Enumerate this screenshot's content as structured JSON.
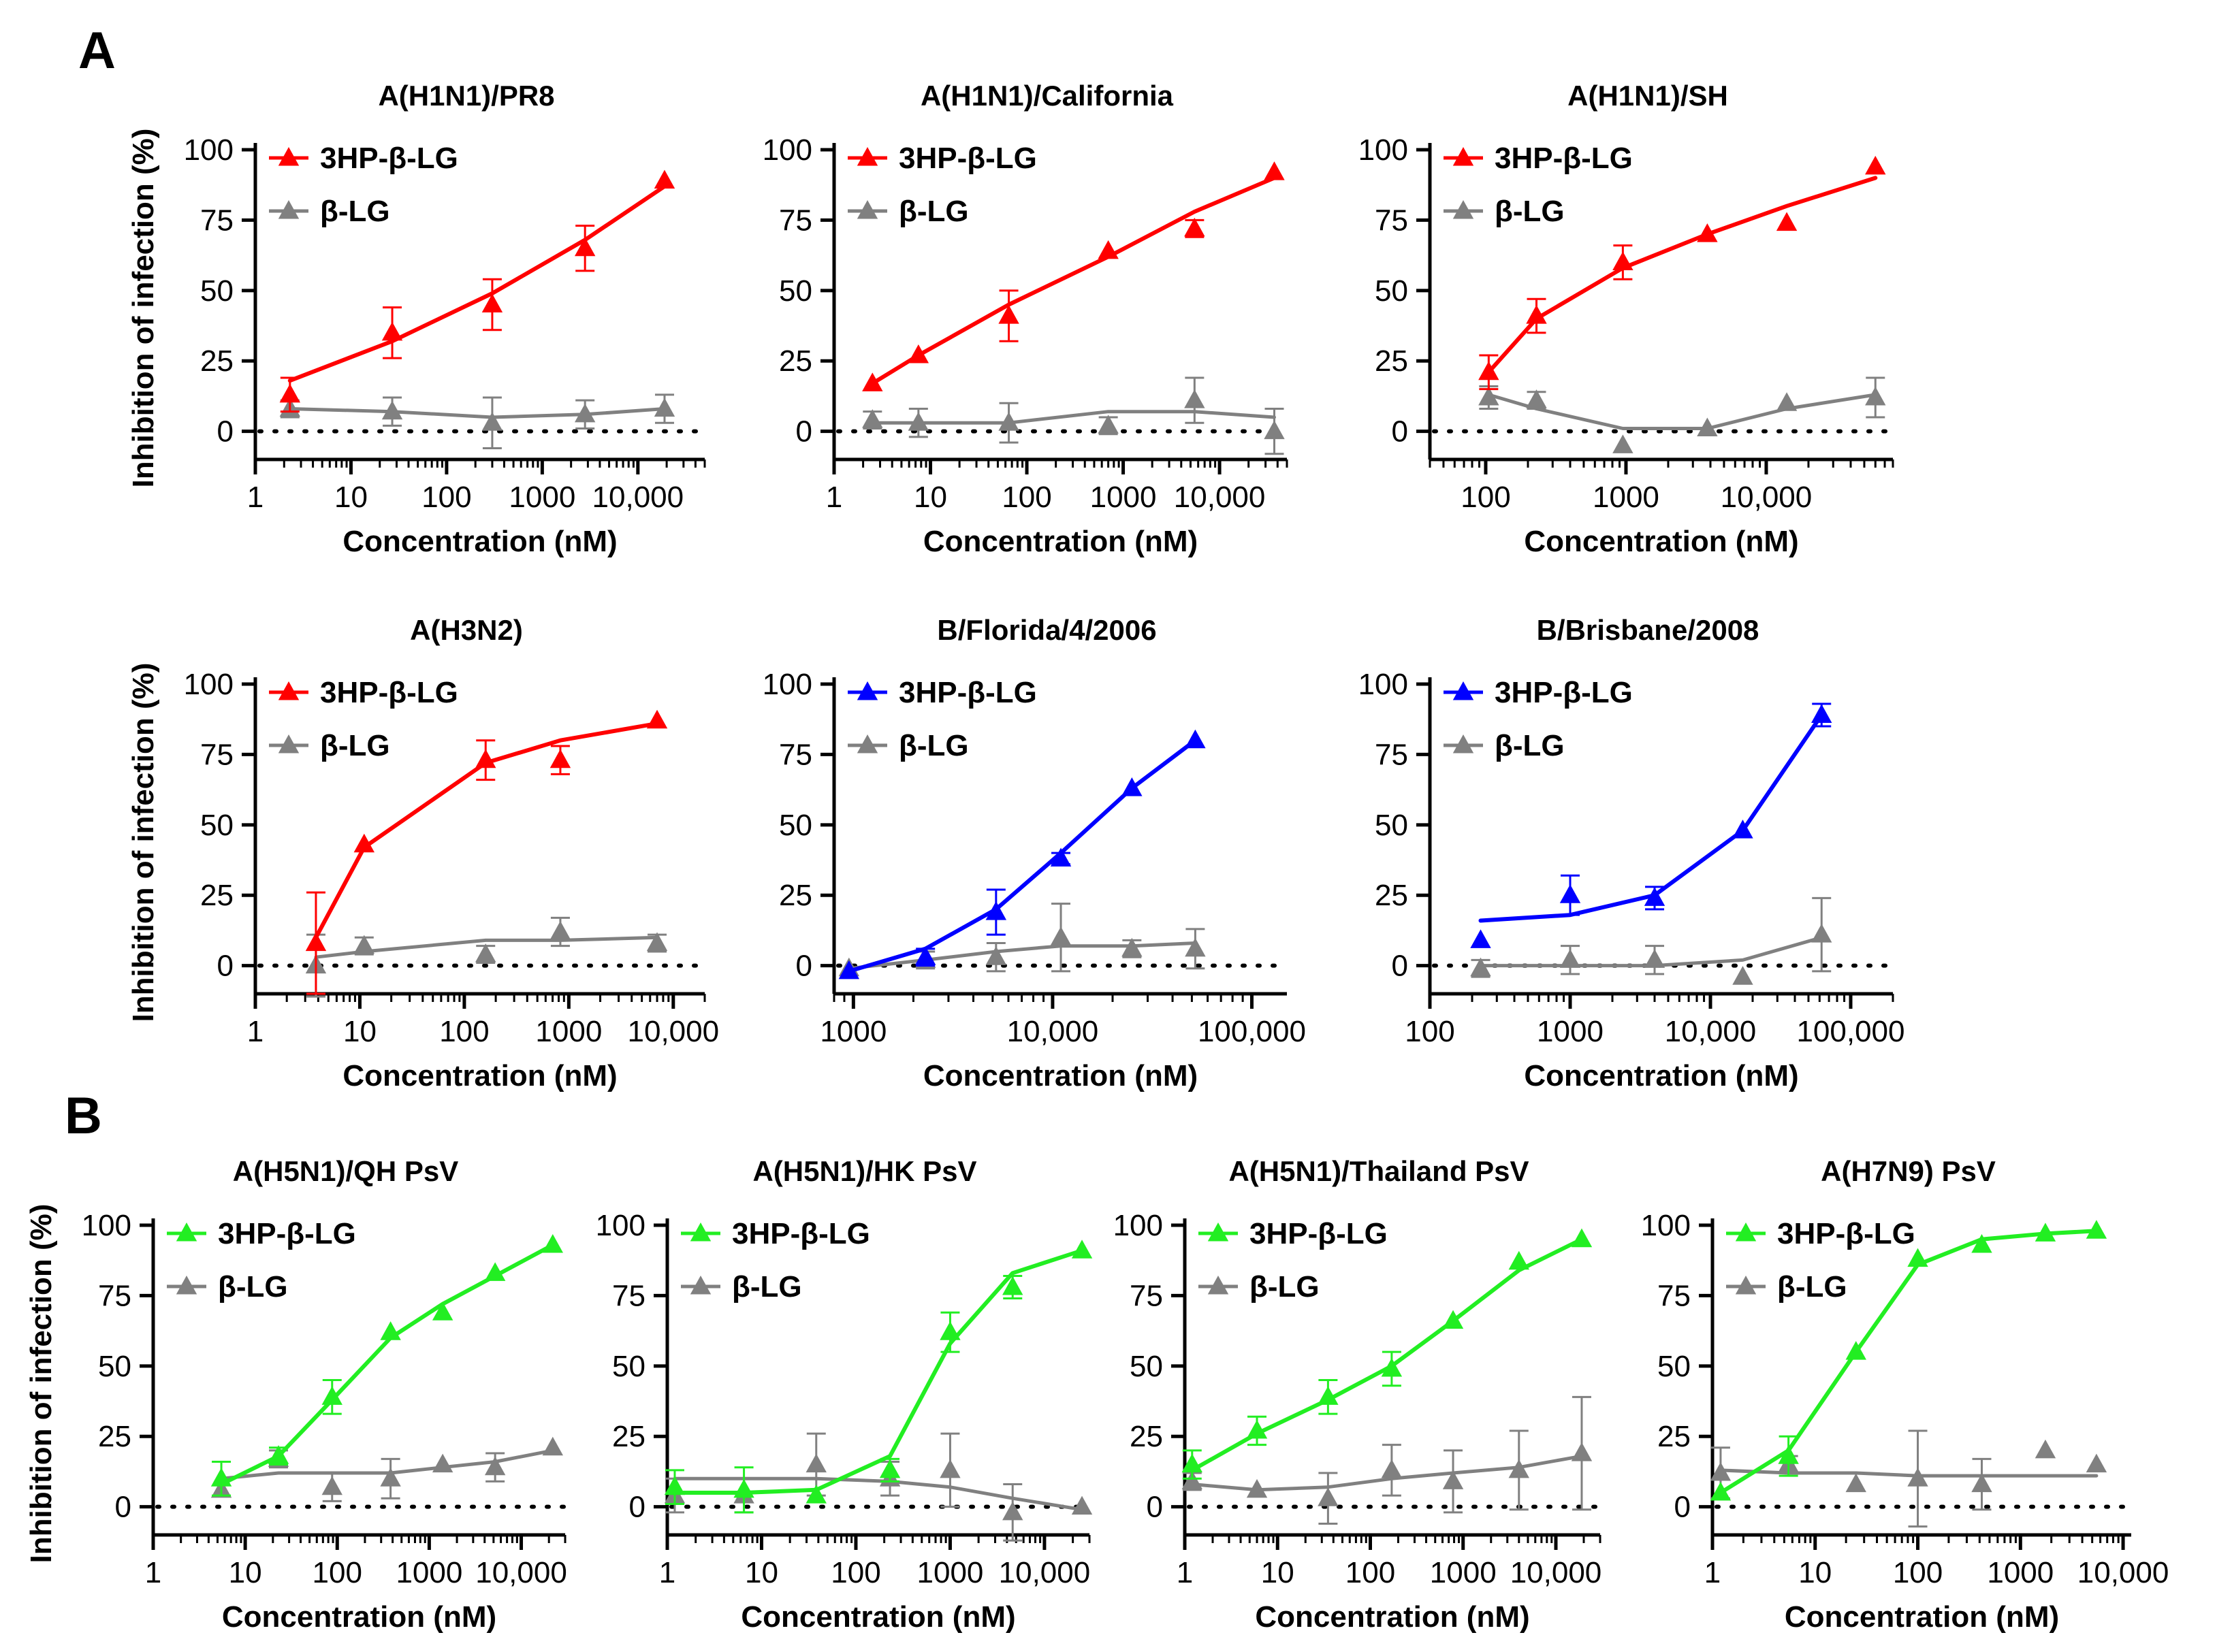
{
  "panel_labels": {
    "a": "A",
    "b": "B"
  },
  "chart_data": [
    {
      "type": "line",
      "title": "A(H1N1)/PR8",
      "xscale": "log",
      "xlim": [
        1,
        50000
      ],
      "ylim": [
        -10,
        100
      ],
      "xticks": [
        {
          "v": 1,
          "l": "1"
        },
        {
          "v": 10,
          "l": "10"
        },
        {
          "v": 100,
          "l": "100"
        },
        {
          "v": 1000,
          "l": "1000"
        },
        {
          "v": 10000,
          "l": "10,000"
        }
      ],
      "yticks": [
        0,
        25,
        50,
        75,
        100
      ],
      "xlabel": "Concentration (nM)",
      "ylabel": "Inhibition of infection (%)",
      "series": [
        {
          "name": "3HP-β-LG",
          "color": "#ff0000",
          "x": [
            2.3,
            27,
            300,
            2800,
            19000
          ],
          "y": [
            13,
            35,
            45,
            65,
            89
          ],
          "err": [
            6,
            9,
            9,
            8,
            0
          ],
          "fit": [
            18,
            32,
            49,
            68,
            87
          ]
        },
        {
          "name": "β-LG",
          "color": "#808080",
          "x": [
            2.3,
            27,
            300,
            2800,
            19000
          ],
          "y": [
            8,
            7,
            3,
            6,
            8
          ],
          "err": [
            3,
            5,
            9,
            5,
            5
          ],
          "fit": [
            8,
            7,
            5,
            6,
            8
          ]
        }
      ]
    },
    {
      "type": "line",
      "title": "A(H1N1)/California",
      "xscale": "log",
      "xlim": [
        1,
        50000
      ],
      "ylim": [
        -10,
        100
      ],
      "xticks": [
        {
          "v": 1,
          "l": "1"
        },
        {
          "v": 10,
          "l": "10"
        },
        {
          "v": 100,
          "l": "100"
        },
        {
          "v": 1000,
          "l": "1000"
        },
        {
          "v": 10000,
          "l": "10,000"
        }
      ],
      "yticks": [
        0,
        25,
        50,
        75,
        100
      ],
      "xlabel": "Concentration (nM)",
      "ylabel": "",
      "series": [
        {
          "name": "3HP-β-LG",
          "color": "#ff0000",
          "x": [
            2.5,
            7.5,
            65,
            700,
            5500,
            37000
          ],
          "y": [
            17,
            27,
            41,
            64,
            72,
            92
          ],
          "err": [
            0,
            0,
            9,
            0,
            3,
            0
          ],
          "fit": [
            17,
            27,
            45,
            62,
            78,
            90
          ]
        },
        {
          "name": "β-LG",
          "color": "#808080",
          "x": [
            2.5,
            7.5,
            65,
            700,
            5500,
            37000
          ],
          "y": [
            4,
            3,
            3,
            2,
            11,
            0
          ],
          "err": [
            3,
            5,
            7,
            3,
            8,
            8
          ],
          "fit": [
            3,
            3,
            3,
            7,
            7,
            5
          ]
        }
      ]
    },
    {
      "type": "line",
      "title": "A(H1N1)/SH",
      "xscale": "log",
      "xlim": [
        40,
        80000
      ],
      "ylim": [
        -10,
        100
      ],
      "xticks": [
        {
          "v": 100,
          "l": "100"
        },
        {
          "v": 1000,
          "l": "1000"
        },
        {
          "v": 10000,
          "l": "10,000"
        }
      ],
      "yticks": [
        0,
        25,
        50,
        75,
        100
      ],
      "xlabel": "Concentration (nM)",
      "ylabel": "",
      "series": [
        {
          "name": "3HP-β-LG",
          "color": "#ff0000",
          "x": [
            105,
            230,
            950,
            3800,
            14000,
            60000
          ],
          "y": [
            21,
            41,
            60,
            70,
            74,
            94
          ],
          "err": [
            6,
            6,
            6,
            0,
            0,
            0
          ],
          "fit": [
            21,
            40,
            58,
            70,
            80,
            90
          ]
        },
        {
          "name": "β-LG",
          "color": "#808080",
          "x": [
            105,
            230,
            950,
            3800,
            14000,
            60000
          ],
          "y": [
            12,
            11,
            -5,
            1,
            10,
            12
          ],
          "err": [
            4,
            3,
            0,
            0,
            0,
            7
          ],
          "fit": [
            13,
            8,
            1,
            1,
            8,
            13
          ]
        }
      ]
    },
    {
      "type": "line",
      "title": "A(H3N2)",
      "xscale": "log",
      "xlim": [
        1,
        20000
      ],
      "ylim": [
        -10,
        100
      ],
      "xticks": [
        {
          "v": 1,
          "l": "1"
        },
        {
          "v": 10,
          "l": "10"
        },
        {
          "v": 100,
          "l": "100"
        },
        {
          "v": 1000,
          "l": "1000"
        },
        {
          "v": 10000,
          "l": "10,000"
        }
      ],
      "yticks": [
        0,
        25,
        50,
        75,
        100
      ],
      "xlabel": "Concentration (nM)",
      "ylabel": "Inhibition of infection (%)",
      "series": [
        {
          "name": "3HP-β-LG",
          "color": "#ff0000",
          "x": [
            3.8,
            11,
            160,
            830,
            7000
          ],
          "y": [
            8,
            43,
            73,
            73,
            87
          ],
          "err": [
            18,
            0,
            7,
            5,
            0
          ],
          "fit": [
            10,
            42,
            72,
            80,
            86
          ]
        },
        {
          "name": "β-LG",
          "color": "#808080",
          "x": [
            3.8,
            11,
            160,
            830,
            7000
          ],
          "y": [
            0,
            7,
            4,
            12,
            8
          ],
          "err": [
            11,
            3,
            3,
            5,
            3
          ],
          "fit": [
            3,
            5,
            9,
            9,
            10
          ]
        }
      ]
    },
    {
      "type": "line",
      "title": "B/Florida/4/2006",
      "xscale": "log",
      "xlim": [
        800,
        150000
      ],
      "ylim": [
        -10,
        100
      ],
      "xticks": [
        {
          "v": 1000,
          "l": "1000"
        },
        {
          "v": 10000,
          "l": "10,000"
        },
        {
          "v": 100000,
          "l": "100,000"
        }
      ],
      "yticks": [
        0,
        25,
        50,
        75,
        100
      ],
      "xlabel": "Concentration (nM)",
      "ylabel": "",
      "series": [
        {
          "name": "3HP-β-LG",
          "color": "#0000ff",
          "x": [
            950,
            2300,
            5200,
            11000,
            25000,
            52000
          ],
          "y": [
            -2,
            3,
            19,
            38,
            63,
            80
          ],
          "err": [
            0,
            3,
            8,
            2,
            0,
            0
          ],
          "fit": [
            -2,
            6,
            20,
            40,
            63,
            80
          ]
        },
        {
          "name": "β-LG",
          "color": "#808080",
          "x": [
            950,
            2300,
            5200,
            11000,
            25000,
            52000
          ],
          "y": [
            -1,
            2,
            3,
            10,
            6,
            6
          ],
          "err": [
            0,
            3,
            5,
            12,
            3,
            7
          ],
          "fit": [
            -1,
            2,
            5,
            7,
            7,
            8
          ]
        }
      ]
    },
    {
      "type": "line",
      "title": "B/Brisbane/2008",
      "xscale": "log",
      "xlim": [
        100,
        200000
      ],
      "ylim": [
        -10,
        100
      ],
      "xticks": [
        {
          "v": 100,
          "l": "100"
        },
        {
          "v": 1000,
          "l": "1000"
        },
        {
          "v": 10000,
          "l": "10,000"
        },
        {
          "v": 100000,
          "l": "100,000"
        }
      ],
      "yticks": [
        0,
        25,
        50,
        75,
        100
      ],
      "xlabel": "Concentration (nM)",
      "ylabel": "",
      "series": [
        {
          "name": "3HP-β-LG",
          "color": "#0000ff",
          "x": [
            230,
            1000,
            4000,
            17000,
            62000
          ],
          "y": [
            9,
            25,
            24,
            48,
            89
          ],
          "err": [
            0,
            7,
            4,
            0,
            4
          ],
          "fit": [
            16,
            18,
            25,
            48,
            89
          ]
        },
        {
          "name": "β-LG",
          "color": "#808080",
          "x": [
            230,
            1000,
            4000,
            17000,
            62000
          ],
          "y": [
            -1,
            2,
            2,
            -4,
            11
          ],
          "err": [
            3,
            5,
            5,
            0,
            13
          ],
          "fit": [
            0,
            0,
            0,
            2,
            10
          ]
        }
      ]
    },
    {
      "type": "line",
      "title": "A(H5N1)/QH PsV",
      "xscale": "log",
      "xlim": [
        1,
        30000
      ],
      "ylim": [
        -10,
        100
      ],
      "xticks": [
        {
          "v": 1,
          "l": "1"
        },
        {
          "v": 10,
          "l": "10"
        },
        {
          "v": 100,
          "l": "100"
        },
        {
          "v": 1000,
          "l": "1000"
        },
        {
          "v": 10000,
          "l": "10,000"
        }
      ],
      "yticks": [
        0,
        25,
        50,
        75,
        100
      ],
      "xlabel": "Concentration (nM)",
      "ylabel": "Inhibition of infection (%)",
      "series": [
        {
          "name": "3HP-β-LG",
          "color": "#22ee22",
          "x": [
            5.5,
            23,
            88,
            380,
            1400,
            5200,
            22000
          ],
          "y": [
            10,
            18,
            39,
            62,
            69,
            83,
            93
          ],
          "err": [
            6,
            3,
            6,
            0,
            0,
            0,
            0
          ],
          "fit": [
            8,
            18,
            38,
            60,
            72,
            82,
            93
          ]
        },
        {
          "name": "β-LG",
          "color": "#808080",
          "x": [
            5.5,
            23,
            88,
            380,
            1400,
            5200,
            22000
          ],
          "y": [
            6,
            17,
            7,
            10,
            15,
            14,
            21
          ],
          "err": [
            0,
            3,
            5,
            7,
            0,
            5,
            0
          ],
          "fit": [
            10,
            12,
            12,
            12,
            14,
            16,
            20
          ]
        }
      ]
    },
    {
      "type": "line",
      "title": "A(H5N1)/HK PsV",
      "xscale": "log",
      "xlim": [
        1,
        30000
      ],
      "ylim": [
        -10,
        100
      ],
      "xticks": [
        {
          "v": 1,
          "l": "1"
        },
        {
          "v": 10,
          "l": "10"
        },
        {
          "v": 100,
          "l": "100"
        },
        {
          "v": 1000,
          "l": "1000"
        },
        {
          "v": 10000,
          "l": "10,000"
        }
      ],
      "yticks": [
        0,
        25,
        50,
        75,
        100
      ],
      "xlabel": "Concentration (nM)",
      "ylabel": "",
      "series": [
        {
          "name": "3HP-β-LG",
          "color": "#22ee22",
          "x": [
            1.2,
            6.5,
            38,
            230,
            1000,
            4600,
            25000
          ],
          "y": [
            7,
            6,
            4,
            13,
            62,
            78,
            91
          ],
          "err": [
            6,
            8,
            0,
            4,
            7,
            4,
            0
          ],
          "fit": [
            5,
            5,
            6,
            18,
            58,
            83,
            91
          ]
        },
        {
          "name": "β-LG",
          "color": "#808080",
          "x": [
            1.2,
            6.5,
            38,
            230,
            1000,
            4600,
            25000
          ],
          "y": [
            4,
            4,
            15,
            10,
            13,
            -2,
            0
          ],
          "err": [
            6,
            6,
            11,
            6,
            13,
            10,
            0
          ],
          "fit": [
            10,
            10,
            10,
            9,
            7,
            3,
            -1
          ]
        }
      ]
    },
    {
      "type": "line",
      "title": "A(H5N1)/Thailand PsV",
      "xscale": "log",
      "xlim": [
        1,
        30000
      ],
      "ylim": [
        -10,
        100
      ],
      "xticks": [
        {
          "v": 1,
          "l": "1"
        },
        {
          "v": 10,
          "l": "10"
        },
        {
          "v": 100,
          "l": "100"
        },
        {
          "v": 1000,
          "l": "1000"
        },
        {
          "v": 10000,
          "l": "10,000"
        }
      ],
      "yticks": [
        0,
        25,
        50,
        75,
        100
      ],
      "xlabel": "Concentration (nM)",
      "ylabel": "",
      "series": [
        {
          "name": "3HP-β-LG",
          "color": "#22ee22",
          "x": [
            1.2,
            6,
            35,
            170,
            780,
            4000,
            19000
          ],
          "y": [
            15,
            27,
            39,
            49,
            66,
            87,
            95
          ],
          "err": [
            5,
            5,
            6,
            6,
            0,
            0,
            0
          ],
          "fit": [
            13,
            26,
            38,
            50,
            66,
            84,
            95
          ]
        },
        {
          "name": "β-LG",
          "color": "#808080",
          "x": [
            1.2,
            6,
            35,
            170,
            780,
            4000,
            19000
          ],
          "y": [
            9,
            6,
            3,
            13,
            9,
            13,
            19
          ],
          "err": [
            3,
            0,
            9,
            9,
            11,
            14,
            20
          ],
          "fit": [
            8,
            6,
            7,
            10,
            12,
            14,
            18
          ]
        }
      ]
    },
    {
      "type": "line",
      "title": "A(H7N9) PsV",
      "xscale": "log",
      "xlim": [
        1,
        12000
      ],
      "ylim": [
        -10,
        100
      ],
      "xticks": [
        {
          "v": 1,
          "l": "1"
        },
        {
          "v": 10,
          "l": "10"
        },
        {
          "v": 100,
          "l": "100"
        },
        {
          "v": 1000,
          "l": "1000"
        },
        {
          "v": 10000,
          "l": "10,000"
        }
      ],
      "yticks": [
        0,
        25,
        50,
        75,
        100
      ],
      "xlabel": "Concentration (nM)",
      "ylabel": "",
      "series": [
        {
          "name": "3HP-β-LG",
          "color": "#22ee22",
          "x": [
            1.2,
            5.5,
            25,
            100,
            420,
            1750,
            5500
          ],
          "y": [
            5,
            18,
            55,
            88,
            93,
            97,
            98
          ],
          "err": [
            0,
            7,
            0,
            0,
            0,
            0,
            0
          ],
          "fit": [
            5,
            20,
            55,
            86,
            95,
            97,
            98
          ]
        },
        {
          "name": "β-LG",
          "color": "#808080",
          "x": [
            1.2,
            5.5,
            25,
            100,
            420,
            1750,
            5500
          ],
          "y": [
            12,
            15,
            8,
            10,
            8,
            20,
            15
          ],
          "err": [
            9,
            3,
            0,
            17,
            9,
            0,
            0
          ],
          "fit": [
            13,
            12,
            12,
            11,
            11,
            11,
            11
          ]
        }
      ]
    }
  ]
}
